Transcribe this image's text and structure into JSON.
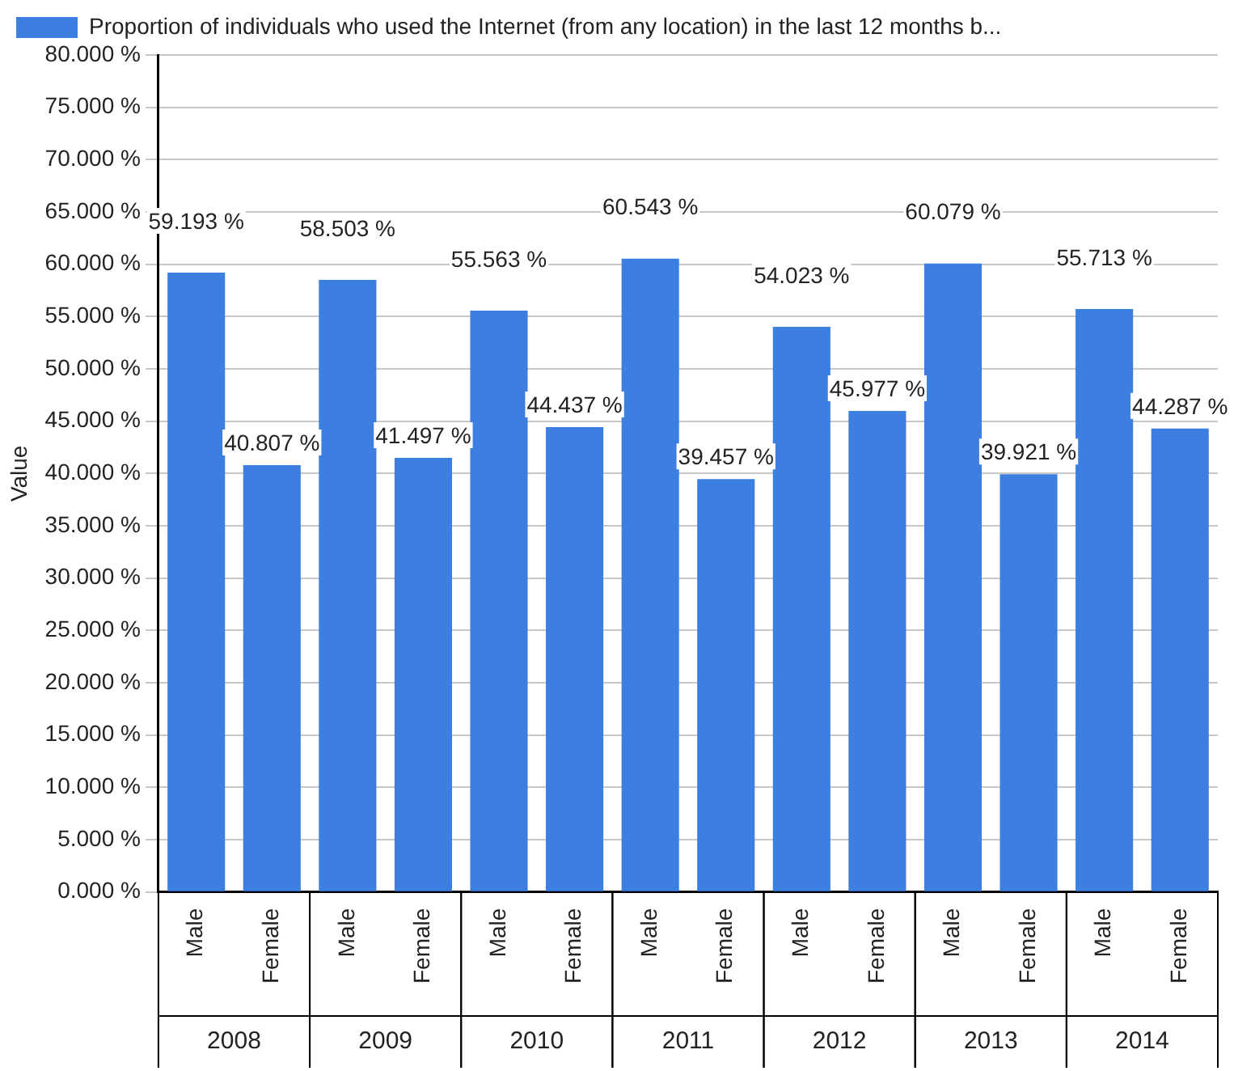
{
  "chart_data": {
    "type": "bar",
    "ylabel": "Value",
    "categories": [
      "Male",
      "Female",
      "Male",
      "Female",
      "Male",
      "Female",
      "Male",
      "Female",
      "Male",
      "Female",
      "Male",
      "Female",
      "Male",
      "Female"
    ],
    "series": [
      {
        "name": "Proportion of individuals who used the Internet (from any location) in the last 12 months b...",
        "color": "#3d7fe0",
        "values": [
          59.193,
          40.807,
          58.503,
          41.497,
          55.563,
          44.437,
          60.543,
          39.457,
          54.023,
          45.977,
          60.079,
          39.921,
          55.713,
          44.287
        ],
        "value_labels": [
          "59.193 %",
          "40.807 %",
          "58.503 %",
          "41.497 %",
          "55.563 %",
          "44.437 %",
          "60.543 %",
          "39.457 %",
          "54.023 %",
          "45.977 %",
          "60.079 %",
          "39.921 %",
          "55.713 %",
          "44.287 %"
        ]
      }
    ],
    "ylim": [
      0,
      80
    ],
    "yticks": [
      {
        "value": 0,
        "label": "0.000 %"
      },
      {
        "value": 5,
        "label": "5.000 %"
      },
      {
        "value": 10,
        "label": "10.000 %"
      },
      {
        "value": 15,
        "label": "15.000 %"
      },
      {
        "value": 20,
        "label": "20.000 %"
      },
      {
        "value": 25,
        "label": "25.000 %"
      },
      {
        "value": 30,
        "label": "30.000 %"
      },
      {
        "value": 35,
        "label": "35.000 %"
      },
      {
        "value": 40,
        "label": "40.000 %"
      },
      {
        "value": 45,
        "label": "45.000 %"
      },
      {
        "value": 50,
        "label": "50.000 %"
      },
      {
        "value": 55,
        "label": "55.000 %"
      },
      {
        "value": 60,
        "label": "60.000 %"
      },
      {
        "value": 65,
        "label": "65.000 %"
      },
      {
        "value": 70,
        "label": "70.000 %"
      },
      {
        "value": 75,
        "label": "75.000 %"
      },
      {
        "value": 80,
        "label": "80.000 %"
      }
    ],
    "annotations": [
      "2008",
      "2009",
      "2010",
      "2011",
      "2012",
      "2013",
      "2014"
    ],
    "grid": "y",
    "legend": "top"
  }
}
